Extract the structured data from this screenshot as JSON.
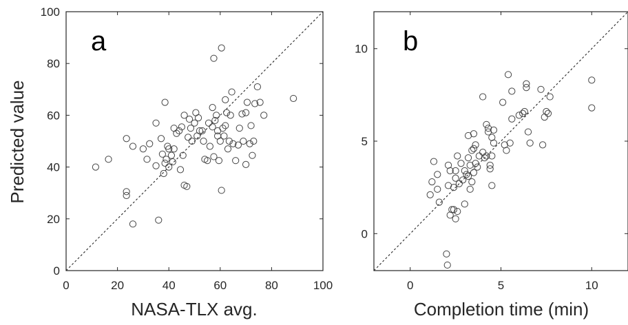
{
  "chart_data": [
    {
      "type": "scatter",
      "panel_label": "a",
      "xlabel": "NASA-TLX avg.",
      "ylabel": "Predicted value",
      "xlim": [
        0,
        100
      ],
      "ylim": [
        0,
        100
      ],
      "xticks": [
        "0",
        "20",
        "40",
        "60",
        "80",
        "100"
      ],
      "yticks": [
        "0",
        "20",
        "40",
        "60",
        "80",
        "100"
      ],
      "identity_line": true,
      "grid": false,
      "marker": "open-circle",
      "marker_color": "#444444",
      "points": [
        [
          11.5,
          40
        ],
        [
          16.5,
          43
        ],
        [
          23.5,
          51
        ],
        [
          23.5,
          30.5
        ],
        [
          23.5,
          29
        ],
        [
          26,
          18
        ],
        [
          26,
          48
        ],
        [
          30,
          47
        ],
        [
          31.5,
          43
        ],
        [
          32.5,
          49
        ],
        [
          35,
          57
        ],
        [
          35,
          40.5
        ],
        [
          36,
          19.5
        ],
        [
          37,
          51
        ],
        [
          37.5,
          45
        ],
        [
          38,
          37.5
        ],
        [
          38.5,
          65
        ],
        [
          38.5,
          41.5
        ],
        [
          39,
          43
        ],
        [
          39.5,
          48
        ],
        [
          40,
          47
        ],
        [
          40,
          40
        ],
        [
          41,
          44.5
        ],
        [
          41.5,
          42
        ],
        [
          42,
          47
        ],
        [
          42,
          55
        ],
        [
          43,
          53
        ],
        [
          44,
          54
        ],
        [
          44.5,
          39
        ],
        [
          45,
          55.5
        ],
        [
          45.5,
          44.5
        ],
        [
          46,
          33
        ],
        [
          46,
          60
        ],
        [
          47,
          32.5
        ],
        [
          47.5,
          51.5
        ],
        [
          48,
          58.5
        ],
        [
          48.5,
          55
        ],
        [
          49,
          50
        ],
        [
          50,
          57
        ],
        [
          50.5,
          61
        ],
        [
          51,
          52
        ],
        [
          51.5,
          59
        ],
        [
          52,
          54
        ],
        [
          53,
          54
        ],
        [
          53.5,
          50
        ],
        [
          54,
          43
        ],
        [
          55,
          42.5
        ],
        [
          55.5,
          57
        ],
        [
          56,
          48
        ],
        [
          57,
          63
        ],
        [
          57,
          55.5
        ],
        [
          57.5,
          82
        ],
        [
          57.5,
          44
        ],
        [
          58,
          58
        ],
        [
          58.5,
          60
        ],
        [
          59,
          52
        ],
        [
          59,
          54
        ],
        [
          59.5,
          42.5
        ],
        [
          60,
          50
        ],
        [
          60.5,
          86
        ],
        [
          60.5,
          31
        ],
        [
          61,
          55
        ],
        [
          61.5,
          52
        ],
        [
          62,
          56
        ],
        [
          62,
          66
        ],
        [
          62.5,
          61
        ],
        [
          63,
          47
        ],
        [
          63.5,
          50
        ],
        [
          64,
          60
        ],
        [
          64.5,
          69
        ],
        [
          65,
          49
        ],
        [
          66,
          42.5
        ],
        [
          67,
          48.5
        ],
        [
          67.5,
          55
        ],
        [
          68.5,
          60.5
        ],
        [
          69,
          50
        ],
        [
          70,
          61
        ],
        [
          70,
          41
        ],
        [
          70.5,
          65
        ],
        [
          71.5,
          49
        ],
        [
          72,
          56
        ],
        [
          72.5,
          44.5
        ],
        [
          73,
          50
        ],
        [
          73.5,
          64.5
        ],
        [
          74.5,
          71
        ],
        [
          75.5,
          65
        ],
        [
          77,
          60
        ],
        [
          88.5,
          66.5
        ]
      ]
    },
    {
      "type": "scatter",
      "panel_label": "b",
      "xlabel": "Completion time (min)",
      "ylabel": "",
      "xlim": [
        -2,
        12
      ],
      "ylim": [
        -2,
        12
      ],
      "xticks": [
        "0",
        "5",
        "10"
      ],
      "yticks": [
        "0",
        "5",
        "10"
      ],
      "identity_line": true,
      "grid": false,
      "marker": "open-circle",
      "marker_color": "#444444",
      "points": [
        [
          1.1,
          2.1
        ],
        [
          1.2,
          2.8
        ],
        [
          1.3,
          3.9
        ],
        [
          1.5,
          3.2
        ],
        [
          1.5,
          2.4
        ],
        [
          1.6,
          1.7
        ],
        [
          2.0,
          -1.1
        ],
        [
          2.05,
          -1.7
        ],
        [
          2.1,
          3.7
        ],
        [
          2.1,
          2.6
        ],
        [
          2.2,
          1.0
        ],
        [
          2.2,
          3.4
        ],
        [
          2.3,
          1.3
        ],
        [
          2.4,
          2.5
        ],
        [
          2.4,
          1.3
        ],
        [
          2.5,
          0.8
        ],
        [
          2.5,
          3.0
        ],
        [
          2.5,
          3.4
        ],
        [
          2.6,
          4.2
        ],
        [
          2.6,
          1.2
        ],
        [
          2.7,
          2.7
        ],
        [
          2.8,
          3.8
        ],
        [
          2.9,
          2.9
        ],
        [
          3.0,
          1.6
        ],
        [
          3.0,
          3.4
        ],
        [
          3.1,
          3.2
        ],
        [
          3.2,
          4.1
        ],
        [
          3.2,
          3.1
        ],
        [
          3.2,
          5.3
        ],
        [
          3.3,
          2.4
        ],
        [
          3.3,
          3.7
        ],
        [
          3.4,
          4.5
        ],
        [
          3.4,
          2.8
        ],
        [
          3.5,
          4.6
        ],
        [
          3.5,
          3.3
        ],
        [
          3.5,
          5.4
        ],
        [
          3.6,
          3.8
        ],
        [
          3.6,
          4.8
        ],
        [
          3.7,
          3.6
        ],
        [
          3.8,
          4.2
        ],
        [
          4.0,
          4.4
        ],
        [
          4.0,
          7.4
        ],
        [
          4.1,
          4.1
        ],
        [
          4.2,
          5.9
        ],
        [
          4.2,
          4.2
        ],
        [
          4.3,
          5.5
        ],
        [
          4.3,
          5.7
        ],
        [
          4.4,
          3.7
        ],
        [
          4.4,
          3.5
        ],
        [
          4.5,
          5.2
        ],
        [
          4.5,
          4.2
        ],
        [
          4.5,
          2.6
        ],
        [
          4.6,
          4.9
        ],
        [
          4.6,
          5.6
        ],
        [
          5.1,
          7.1
        ],
        [
          5.2,
          4.8
        ],
        [
          5.3,
          4.5
        ],
        [
          5.4,
          8.6
        ],
        [
          5.5,
          4.9
        ],
        [
          5.6,
          7.7
        ],
        [
          5.6,
          6.2
        ],
        [
          6.0,
          6.4
        ],
        [
          6.2,
          6.5
        ],
        [
          6.3,
          6.6
        ],
        [
          6.4,
          7.9
        ],
        [
          6.4,
          8.1
        ],
        [
          6.5,
          5.5
        ],
        [
          6.6,
          4.9
        ],
        [
          7.2,
          7.8
        ],
        [
          7.3,
          4.8
        ],
        [
          7.4,
          6.3
        ],
        [
          7.5,
          6.6
        ],
        [
          7.6,
          6.5
        ],
        [
          7.7,
          7.4
        ],
        [
          10.0,
          8.3
        ],
        [
          10.0,
          6.8
        ]
      ]
    }
  ]
}
